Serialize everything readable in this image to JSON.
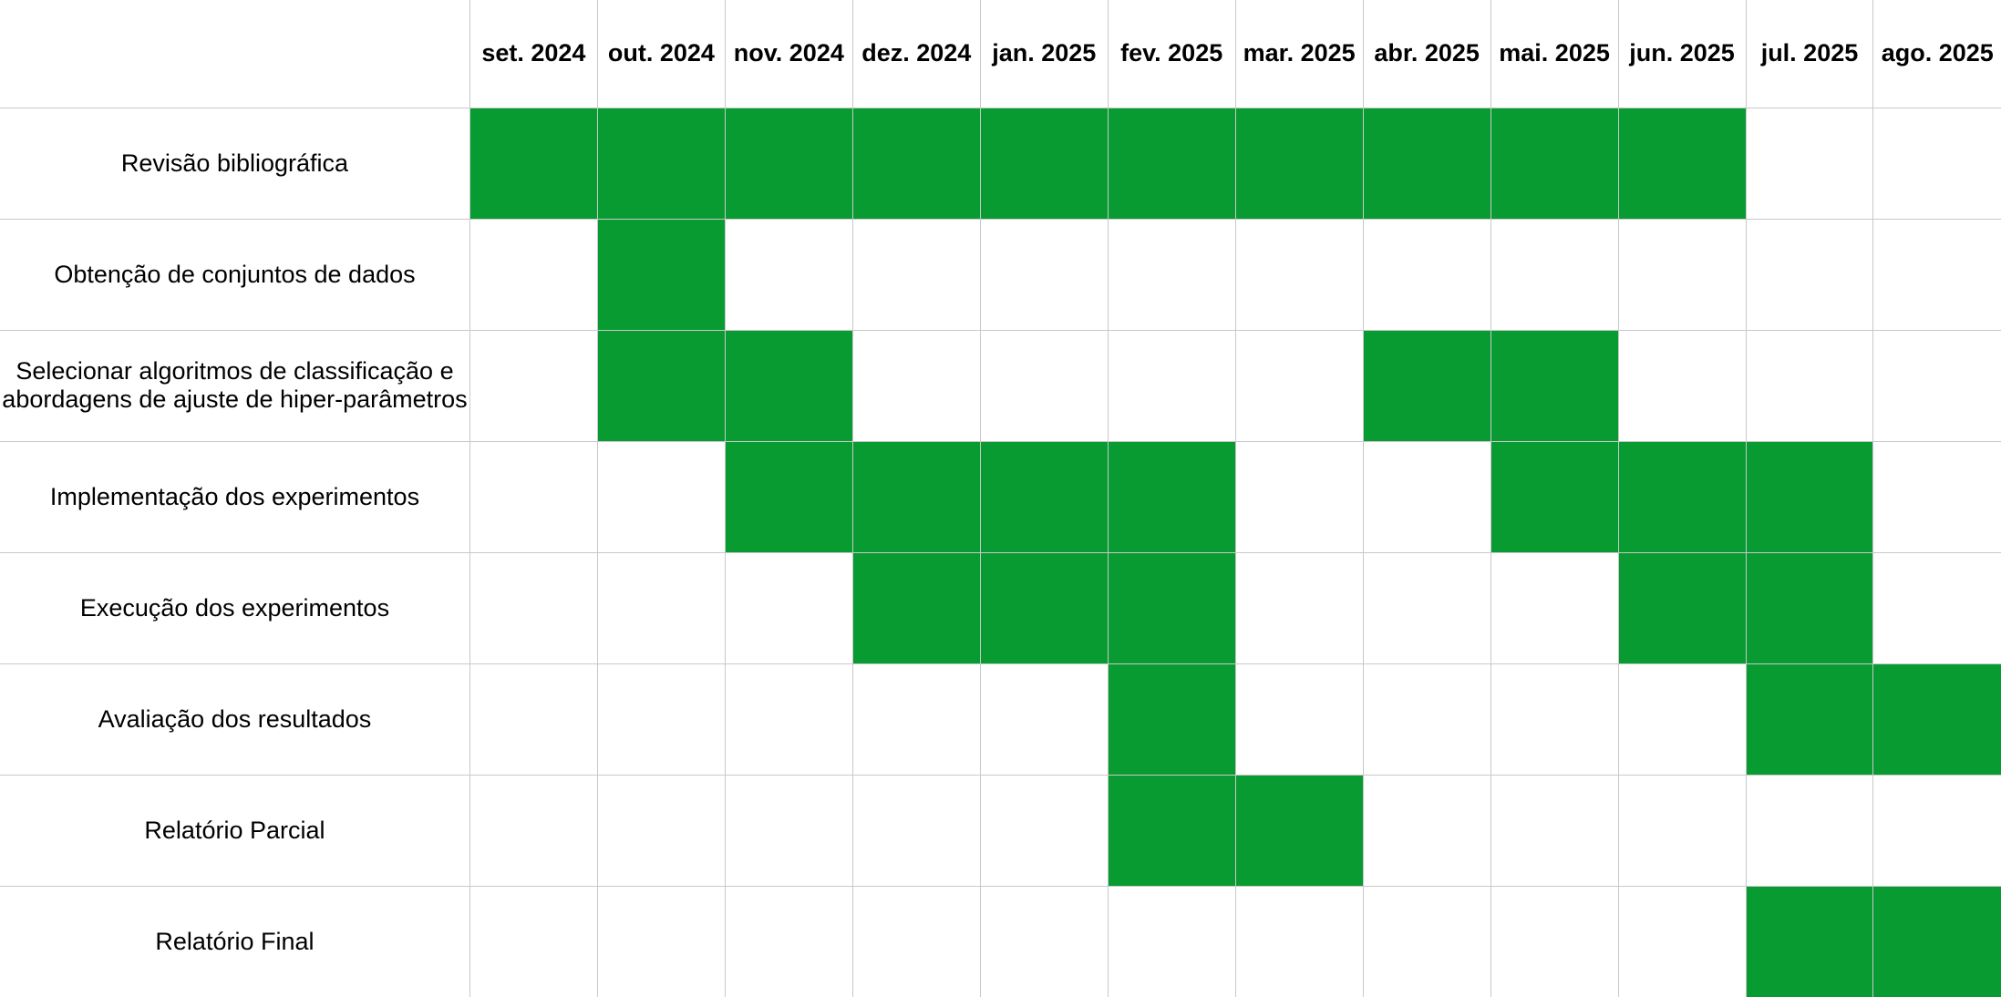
{
  "colors": {
    "active": "#079b31",
    "grid": "#c8c8c8",
    "background": "#ffffff"
  },
  "months": [
    "set. 2024",
    "out. 2024",
    "nov. 2024",
    "dez. 2024",
    "jan. 2025",
    "fev. 2025",
    "mar. 2025",
    "abr. 2025",
    "mai. 2025",
    "jun. 2025",
    "jul. 2025",
    "ago. 2025"
  ],
  "tasks": [
    {
      "name": "Revisão bibliográfica",
      "active": [
        1,
        1,
        1,
        1,
        1,
        1,
        1,
        1,
        1,
        1,
        0,
        0
      ]
    },
    {
      "name": "Obtenção de conjuntos de dados",
      "active": [
        0,
        1,
        0,
        0,
        0,
        0,
        0,
        0,
        0,
        0,
        0,
        0
      ]
    },
    {
      "name": "Selecionar algoritmos de classificação e abordagens de ajuste de hiper-parâmetros",
      "active": [
        0,
        1,
        1,
        0,
        0,
        0,
        0,
        1,
        1,
        0,
        0,
        0
      ]
    },
    {
      "name": "Implementação dos experimentos",
      "active": [
        0,
        0,
        1,
        1,
        1,
        1,
        0,
        0,
        1,
        1,
        1,
        0
      ]
    },
    {
      "name": "Execução dos experimentos",
      "active": [
        0,
        0,
        0,
        1,
        1,
        1,
        0,
        0,
        0,
        1,
        1,
        0
      ]
    },
    {
      "name": "Avaliação dos resultados",
      "active": [
        0,
        0,
        0,
        0,
        0,
        1,
        0,
        0,
        0,
        0,
        1,
        1
      ]
    },
    {
      "name": "Relatório Parcial",
      "active": [
        0,
        0,
        0,
        0,
        0,
        1,
        1,
        0,
        0,
        0,
        0,
        0
      ]
    },
    {
      "name": "Relatório Final",
      "active": [
        0,
        0,
        0,
        0,
        0,
        0,
        0,
        0,
        0,
        0,
        1,
        1
      ]
    }
  ]
}
